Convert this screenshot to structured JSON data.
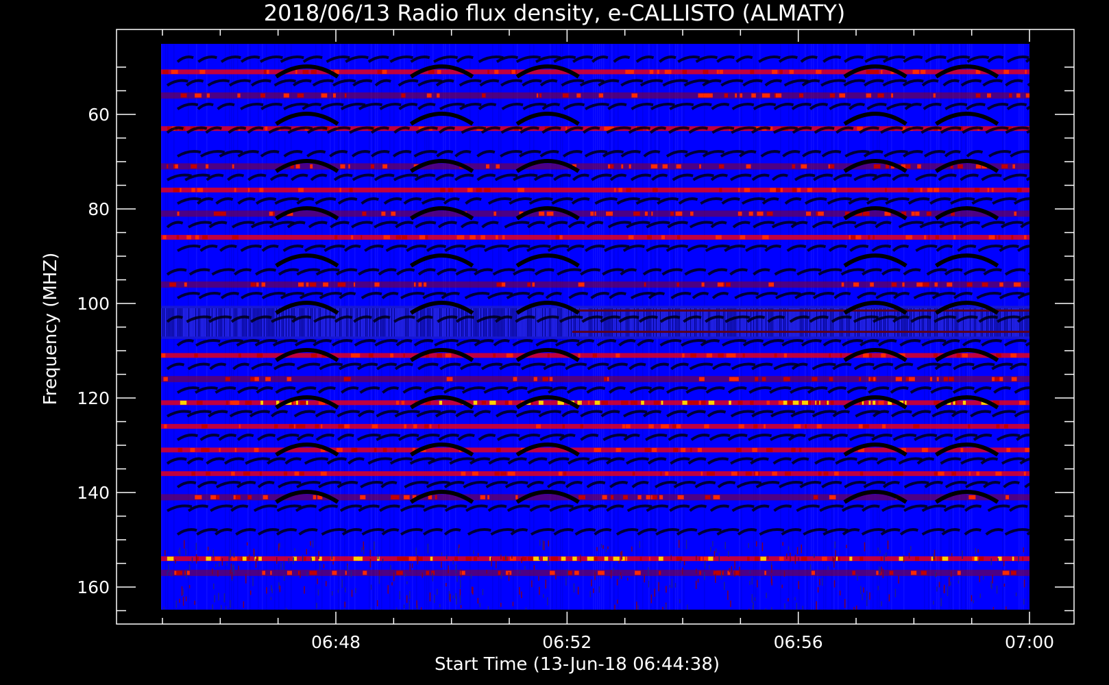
{
  "chart_data": {
    "type": "heatmap",
    "title": "2018/06/13  Radio flux density, e-CALLISTO (ALMATY)",
    "xlabel": "Start Time (13-Jun-18 06:44:38)",
    "ylabel": "Frequency (MHZ)",
    "x_range": [
      "06:44:38",
      "07:00:00"
    ],
    "x_ticks": [
      "06:48",
      "06:52",
      "06:56",
      "07:00"
    ],
    "y_range": [
      45,
      165
    ],
    "y_ticks": [
      60,
      80,
      100,
      120,
      140,
      160
    ],
    "y_inverted": true,
    "colors": {
      "background": "#0000ff",
      "dark": "#000000",
      "emission": "#ff0000",
      "peak": "#ffd200"
    },
    "horizontal_bands_mhz": [
      {
        "freq": 51,
        "level": "red"
      },
      {
        "freq": 56,
        "level": "dark-red"
      },
      {
        "freq": 63,
        "level": "red"
      },
      {
        "freq": 71,
        "level": "dark-red"
      },
      {
        "freq": 76,
        "level": "red"
      },
      {
        "freq": 81,
        "level": "dark-red"
      },
      {
        "freq": 86,
        "level": "red"
      },
      {
        "freq": 96,
        "level": "dark-red"
      },
      {
        "freq": 111,
        "level": "red"
      },
      {
        "freq": 116,
        "level": "dark-red"
      },
      {
        "freq": 121,
        "level": "bright"
      },
      {
        "freq": 126,
        "level": "red"
      },
      {
        "freq": 131,
        "level": "red"
      },
      {
        "freq": 136,
        "level": "red"
      },
      {
        "freq": 141,
        "level": "dark-red"
      },
      {
        "freq": 154,
        "level": "bright"
      },
      {
        "freq": 157,
        "level": "dark-red"
      }
    ],
    "dark_arch_centers": [
      "06:47:30",
      "06:49:50",
      "06:51:40",
      "06:57:20",
      "06:58:55"
    ]
  }
}
